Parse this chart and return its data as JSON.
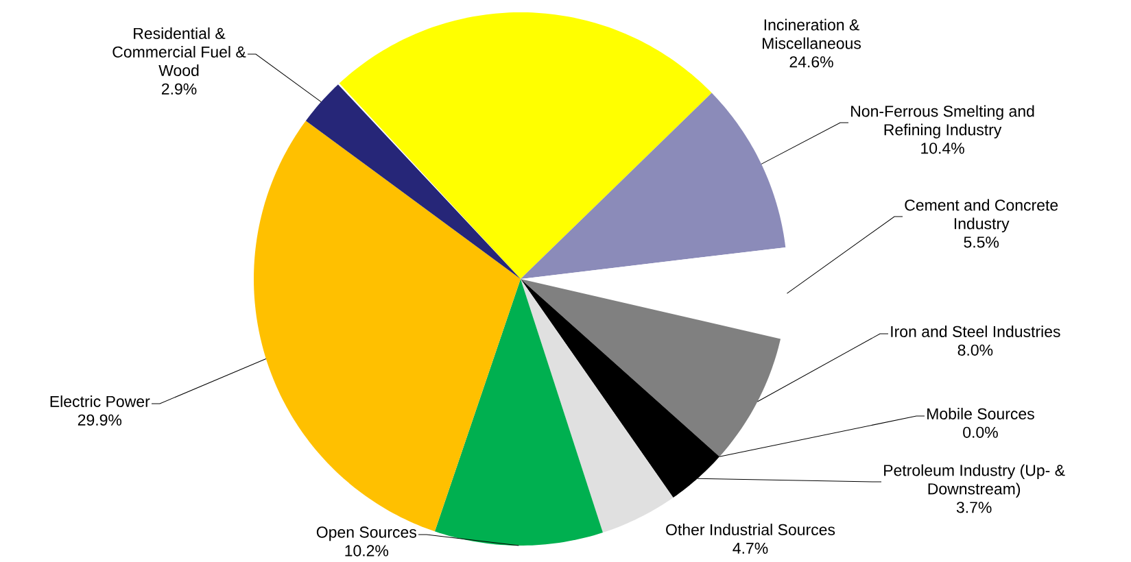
{
  "chart_data": {
    "type": "pie",
    "value_labels": [
      "24.6%",
      "10.4%",
      "5.5%",
      "8.0%",
      "0.0%",
      "3.7%",
      "4.7%",
      "10.2%",
      "29.9%",
      "2.9%"
    ],
    "categories": [
      "Incineration & Miscellaneous",
      "Non-Ferrous Smelting and Refining Industry",
      "Cement and Concrete Industry",
      "Iron and Steel Industries",
      "Mobile Sources",
      "Petroleum Industry (Up- & Downstream)",
      "Other Industrial Sources",
      "Open Sources",
      "Electric Power",
      "Residential & Commercial Fuel & Wood"
    ],
    "values": [
      24.6,
      10.4,
      5.5,
      8.0,
      0.0,
      3.7,
      4.7,
      10.2,
      29.9,
      2.9
    ],
    "colors": [
      "#ffff00",
      "#8b8bb9",
      "#ffffff",
      "#808080",
      "#ff0000",
      "#000000",
      "#e0e0e0",
      "#00b050",
      "#ffc000",
      "#262678"
    ]
  }
}
